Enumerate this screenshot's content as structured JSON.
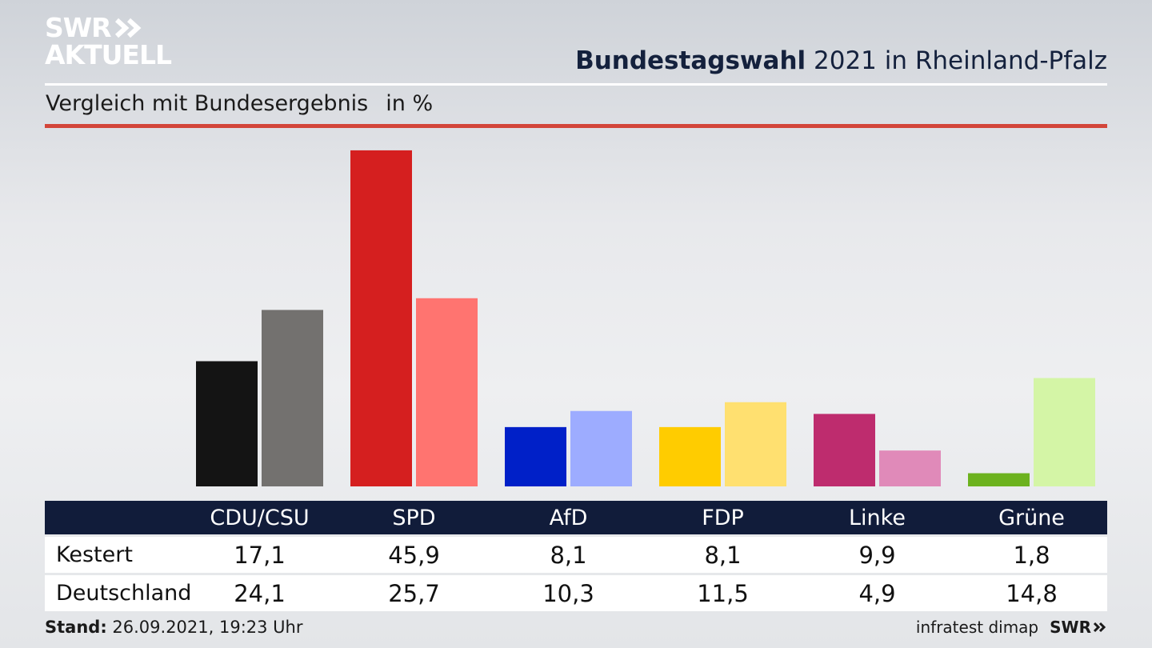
{
  "brand": {
    "logo_line1": "SWR",
    "logo_line2": "AKTUELL",
    "footer_logo": "SWR"
  },
  "header": {
    "title_bold": "Bundestagswahl",
    "title_rest": " 2021 in Rheinland-Pfalz"
  },
  "subtitle": {
    "text": "Vergleich mit Bundesergebnis",
    "unit": "in %"
  },
  "footer": {
    "stand_label": "Stand:",
    "stand_value": " 26.09.2021, 19:23 Uhr",
    "source": "infratest dimap"
  },
  "colors": {
    "CDU/CSU": [
      "#141414",
      "#73716f"
    ],
    "SPD": [
      "#d51f1f",
      "#ff7470"
    ],
    "AfD": [
      "#0020c8",
      "#9dacff"
    ],
    "FDP": [
      "#ffcc00",
      "#ffe070"
    ],
    "Linke": [
      "#be2c6e",
      "#e08ab9"
    ],
    "Grüne": [
      "#6cb21e",
      "#d4f5a6"
    ]
  },
  "chart_data": {
    "type": "bar",
    "title": "Bundestagswahl 2021 in Rheinland-Pfalz",
    "subtitle": "Vergleich mit Bundesergebnis",
    "unit": "in %",
    "categories": [
      "CDU/CSU",
      "SPD",
      "AfD",
      "FDP",
      "Linke",
      "Grüne"
    ],
    "series": [
      {
        "name": "Kestert",
        "values": [
          "17,1",
          "45,9",
          "8,1",
          "8,1",
          "9,9",
          "1,8"
        ]
      },
      {
        "name": "Deutschland",
        "values": [
          "24,1",
          "25,7",
          "10,3",
          "11,5",
          "4,9",
          "14,8"
        ]
      }
    ],
    "ylim": [
      0,
      46
    ],
    "grid": false,
    "legend": "table-below"
  }
}
